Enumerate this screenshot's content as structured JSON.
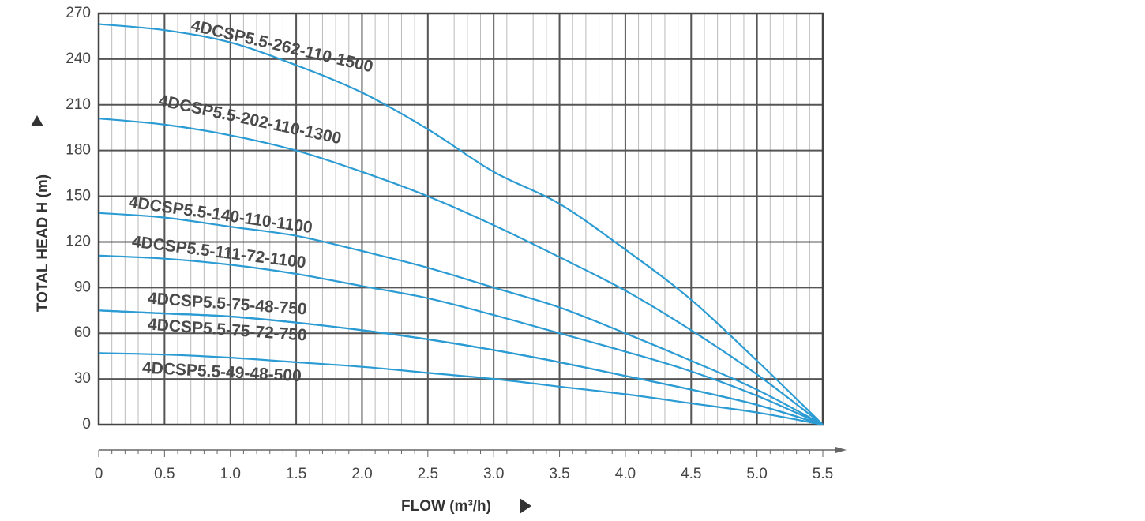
{
  "colors": {
    "curve": "#2b9bd3",
    "grid_major": "#555555",
    "grid_minor": "#bbbbbb",
    "frame": "#444444",
    "text": "#444444"
  },
  "chart_data": {
    "type": "line",
    "title": "",
    "xlabel": "FLOW (m³/h)",
    "ylabel": "TOTAL HEAD H (m)",
    "xlim": [
      0,
      5.5
    ],
    "ylim": [
      0,
      270
    ],
    "x_ticks": [
      "0",
      "0.5",
      "1.0",
      "1.5",
      "2.0",
      "2.5",
      "3.0",
      "3.5",
      "4.0",
      "4.5",
      "5.0",
      "5.5"
    ],
    "y_ticks": [
      "0",
      "30",
      "60",
      "90",
      "120",
      "150",
      "180",
      "210",
      "240",
      "270"
    ],
    "grid": true,
    "series": [
      {
        "name": "4DCSP5.5-262-110-1500",
        "x": [
          0,
          0.5,
          1.0,
          1.5,
          2.0,
          2.5,
          3.0,
          3.5,
          4.0,
          4.5,
          5.0,
          5.5
        ],
        "values": [
          263,
          259,
          251,
          236,
          218,
          194,
          166,
          145,
          115,
          82,
          42,
          0
        ]
      },
      {
        "name": "4DCSP5.5-202-110-1300",
        "x": [
          0,
          0.5,
          1.0,
          1.5,
          2.0,
          2.5,
          3.0,
          3.5,
          4.0,
          4.5,
          5.0,
          5.5
        ],
        "values": [
          201,
          197,
          190,
          180,
          166,
          150,
          131,
          110,
          88,
          62,
          33,
          0
        ]
      },
      {
        "name": "4DCSP5.5-140-110-1100",
        "x": [
          0,
          0.5,
          1.0,
          1.5,
          2.0,
          2.5,
          3.0,
          3.5,
          4.0,
          4.5,
          5.0,
          5.5
        ],
        "values": [
          139,
          136,
          130,
          124,
          114,
          103,
          90,
          77,
          60,
          42,
          23,
          0
        ]
      },
      {
        "name": "4DCSP5.5-111-72-1100",
        "x": [
          0,
          0.5,
          1.0,
          1.5,
          2.0,
          2.5,
          3.0,
          3.5,
          4.0,
          4.5,
          5.0,
          5.5
        ],
        "values": [
          111,
          109,
          105,
          99,
          91,
          83,
          72,
          60,
          48,
          35,
          19,
          0
        ]
      },
      {
        "name": "4DCSP5.5-75-48-750",
        "x": [
          0,
          0.5,
          1.0,
          1.5,
          2.0,
          2.5,
          3.0,
          3.5,
          4.0,
          4.5,
          5.0,
          5.5
        ],
        "values": [
          75,
          73,
          71,
          67,
          62,
          56,
          49,
          41,
          32,
          23,
          13,
          0
        ]
      },
      {
        "name": "4DCSP5.5-75-72-750",
        "x": [
          0,
          0.5,
          1.0,
          1.5,
          2.0,
          2.5,
          3.0,
          3.5,
          4.0,
          4.5,
          5.0,
          5.5
        ],
        "values": [
          75,
          73,
          71,
          67,
          62,
          56,
          49,
          41,
          32,
          23,
          13,
          0
        ]
      },
      {
        "name": "4DCSP5.5-49-48-500",
        "x": [
          0,
          0.5,
          1.0,
          1.5,
          2.0,
          2.5,
          3.0,
          3.5,
          4.0,
          4.5,
          5.0,
          5.5
        ],
        "values": [
          47,
          46,
          44,
          41,
          38,
          34,
          30,
          25,
          20,
          14,
          8,
          0
        ]
      }
    ]
  }
}
